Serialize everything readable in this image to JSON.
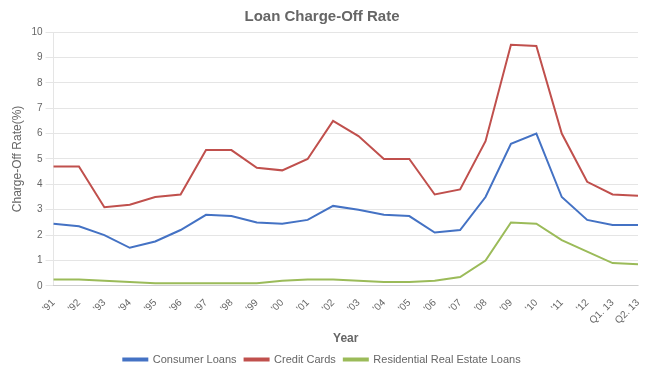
{
  "chart_data": {
    "type": "line",
    "title": "Loan Charge-Off Rate",
    "xlabel": "Year",
    "ylabel": "Charge-Off Rate(%)",
    "categories": [
      "'91",
      "'92",
      "'93",
      "'94",
      "'95",
      "'96",
      "'97",
      "'98",
      "'99",
      "'00",
      "'01",
      "'02",
      "'03",
      "'04",
      "'05",
      "'06",
      "'07",
      "'08",
      "'09",
      "'10",
      "'11",
      "'12",
      "Q1. 13",
      "Q2. 13"
    ],
    "series": [
      {
        "name": "Consumer Loans",
        "color": "#4472c4",
        "values": [
          2.45,
          2.35,
          2.0,
          1.5,
          1.75,
          2.2,
          2.8,
          2.75,
          2.5,
          2.45,
          2.6,
          3.15,
          3.0,
          2.8,
          2.75,
          2.1,
          2.2,
          3.5,
          5.6,
          6.0,
          3.5,
          2.6,
          2.4,
          2.4
        ]
      },
      {
        "name": "Credit Cards",
        "color": "#c0504d",
        "values": [
          4.7,
          4.7,
          3.1,
          3.2,
          3.5,
          3.6,
          5.35,
          5.35,
          4.65,
          4.55,
          5.0,
          6.5,
          5.9,
          5.0,
          5.0,
          3.6,
          3.8,
          5.7,
          9.5,
          9.45,
          6.0,
          4.1,
          3.6,
          3.55
        ]
      },
      {
        "name": "Residential Real Estate Loans",
        "color": "#9bbb59",
        "values": [
          0.25,
          0.25,
          0.2,
          0.15,
          0.1,
          0.1,
          0.1,
          0.1,
          0.1,
          0.2,
          0.25,
          0.25,
          0.2,
          0.15,
          0.15,
          0.2,
          0.35,
          1.0,
          2.5,
          2.45,
          1.8,
          1.35,
          0.9,
          0.85
        ]
      }
    ],
    "ylim": [
      0,
      10
    ],
    "yticks": [
      0,
      1,
      2,
      3,
      4,
      5,
      6,
      7,
      8,
      9,
      10
    ],
    "grid": true,
    "legend": "bottom"
  }
}
